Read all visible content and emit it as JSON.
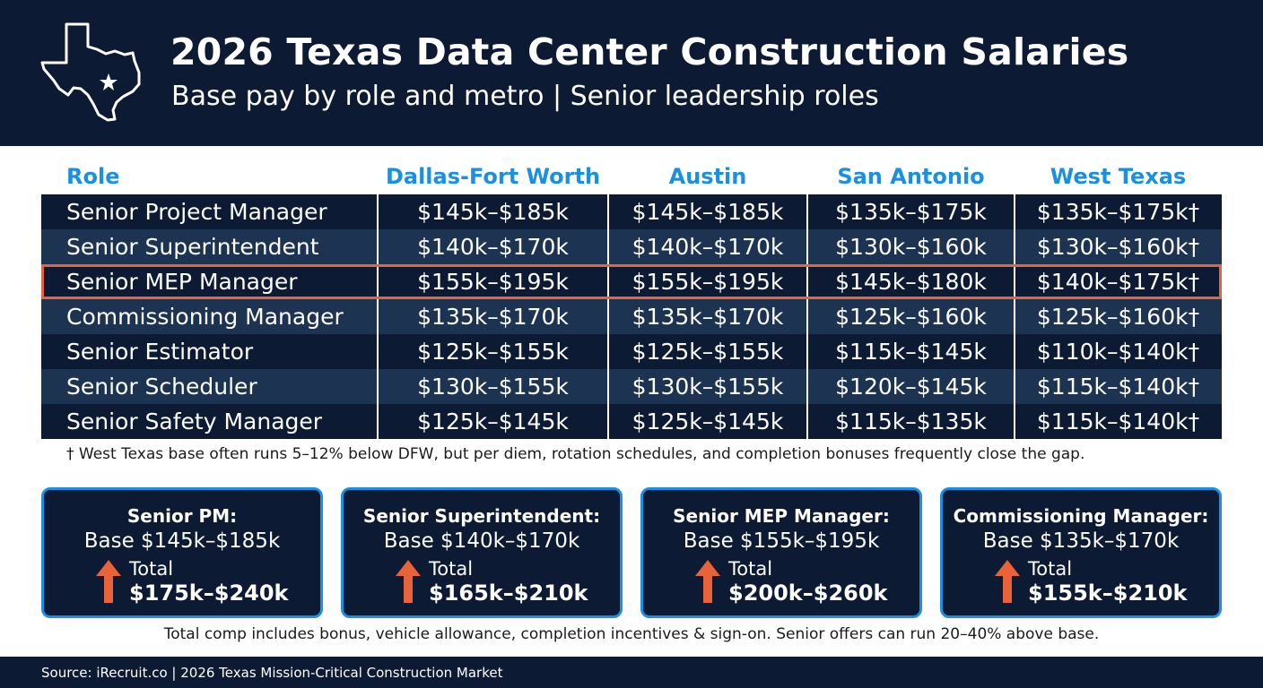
{
  "header": {
    "title": "2026 Texas Data Center Construction Salaries",
    "subtitle": "Base pay by role and metro | Senior leadership roles",
    "icon": "texas-map-icon"
  },
  "colors": {
    "navy": "#0d1a33",
    "row_alt": "#1d3352",
    "accent_blue": "#1b8fe0",
    "highlight_orange": "#e8623a"
  },
  "chart_data": {
    "type": "table",
    "columns": [
      "Role",
      "Dallas-Fort Worth",
      "Austin",
      "San Antonio",
      "West Texas"
    ],
    "rows": [
      {
        "role": "Senior Project Manager",
        "values": [
          "$145k–$185k",
          "$145k–$185k",
          "$135k–$175k",
          "$135k–$175k†"
        ]
      },
      {
        "role": "Senior Superintendent",
        "values": [
          "$140k–$170k",
          "$140k–$170k",
          "$130k–$160k",
          "$130k–$160k†"
        ]
      },
      {
        "role": "Senior MEP Manager",
        "values": [
          "$155k–$195k",
          "$155k–$195k",
          "$145k–$180k",
          "$140k–$175k†"
        ],
        "highlighted": true
      },
      {
        "role": "Commissioning Manager",
        "values": [
          "$135k–$170k",
          "$135k–$170k",
          "$125k–$160k",
          "$125k–$160k†"
        ]
      },
      {
        "role": "Senior Estimator",
        "values": [
          "$125k–$155k",
          "$125k–$155k",
          "$115k–$145k",
          "$110k–$140k†"
        ]
      },
      {
        "role": "Senior Scheduler",
        "values": [
          "$130k–$155k",
          "$130k–$155k",
          "$120k–$145k",
          "$115k–$140k†"
        ]
      },
      {
        "role": "Senior Safety Manager",
        "values": [
          "$125k–$145k",
          "$125k–$145k",
          "$115k–$135k",
          "$115k–$140k†"
        ]
      }
    ]
  },
  "footnote": "† West Texas base often runs 5–12% below DFW, but per diem, rotation schedules, and completion bonuses frequently close the gap.",
  "cards": [
    {
      "title": "Senior PM:",
      "base": "Base $145k–$185k",
      "total_label": "Total",
      "total": "$175k–$240k"
    },
    {
      "title": "Senior Superintendent:",
      "base": "Base $140k–$170k",
      "total_label": "Total",
      "total": "$165k–$210k"
    },
    {
      "title": "Senior MEP Manager:",
      "base": "Base $155k–$195k",
      "total_label": "Total",
      "total": "$200k–$260k"
    },
    {
      "title": "Commissioning Manager:",
      "base": "Base $135k–$170k",
      "total_label": "Total",
      "total": "$155k–$210k"
    }
  ],
  "note": "Total comp includes bonus, vehicle allowance, completion incentives & sign-on. Senior offers can run 20–40% above base.",
  "source": "Source: iRecruit.co | 2026 Texas Mission-Critical Construction Market"
}
